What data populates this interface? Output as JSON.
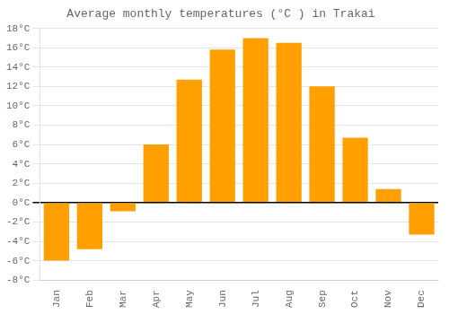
{
  "chart_data": {
    "type": "bar",
    "title": "Average monthly temperatures (°C ) in Trakai",
    "categories": [
      "Jan",
      "Feb",
      "Mar",
      "Apr",
      "May",
      "Jun",
      "Jul",
      "Aug",
      "Sep",
      "Oct",
      "Nov",
      "Dec"
    ],
    "values": [
      -6.0,
      -4.8,
      -0.9,
      6.0,
      12.7,
      15.8,
      17.0,
      16.5,
      12.0,
      6.7,
      1.4,
      -3.3
    ],
    "color": "#FFA000",
    "ylim": [
      -8,
      18
    ],
    "yticks": [
      {
        "value": -8,
        "label": "-8°C"
      },
      {
        "value": -6,
        "label": "-6°C"
      },
      {
        "value": -4,
        "label": "-4°C"
      },
      {
        "value": -2,
        "label": "-2°C"
      },
      {
        "value": 0,
        "label": "0°C"
      },
      {
        "value": 2,
        "label": "2°C"
      },
      {
        "value": 4,
        "label": "4°C"
      },
      {
        "value": 6,
        "label": "6°C"
      },
      {
        "value": 8,
        "label": "8°C"
      },
      {
        "value": 10,
        "label": "10°C"
      },
      {
        "value": 12,
        "label": "12°C"
      },
      {
        "value": 14,
        "label": "14°C"
      },
      {
        "value": 16,
        "label": "16°C"
      },
      {
        "value": 18,
        "label": "18°C"
      }
    ],
    "grid": true
  }
}
